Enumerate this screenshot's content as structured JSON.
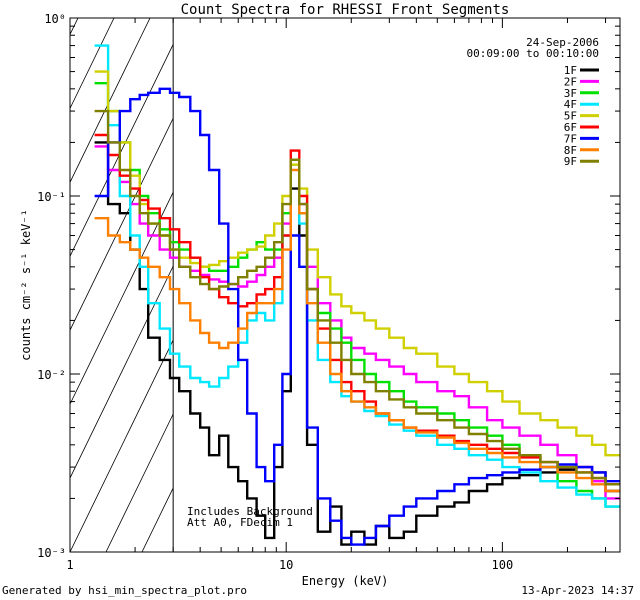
{
  "chart_data": {
    "type": "line",
    "title": "Count Spectra for RHESSI Front Segments",
    "xlabel": "Energy (keV)",
    "ylabel": "counts cm⁻² s⁻¹ keV⁻¹",
    "xscale": "log",
    "yscale": "log",
    "xlim": [
      1,
      350
    ],
    "ylim": [
      0.001,
      1
    ],
    "x_ticks": [
      {
        "v": 1,
        "label": "1"
      },
      {
        "v": 10,
        "label": "10"
      },
      {
        "v": 100,
        "label": "100"
      }
    ],
    "y_ticks": [
      {
        "v": 1,
        "label": "10⁰"
      },
      {
        "v": 0.1,
        "label": "10⁻¹"
      },
      {
        "v": 0.01,
        "label": "10⁻²"
      },
      {
        "v": 0.001,
        "label": "10⁻³"
      }
    ],
    "date": "24-Sep-2006",
    "time_range": "00:09:00 to 00:10:00",
    "annotation_lines": [
      "Includes Background",
      "Att A0, FDecim 1"
    ],
    "hatch_region_keV": [
      1,
      3
    ],
    "series": [
      {
        "name": "1F",
        "color": "#000000",
        "energy": [
          1.3,
          1.5,
          1.7,
          1.9,
          2.1,
          2.3,
          2.6,
          2.9,
          3.2,
          3.6,
          4,
          4.4,
          4.9,
          5.4,
          6,
          6.6,
          7.3,
          8,
          8.8,
          9.6,
          10.5,
          11.5,
          12.5,
          14,
          16,
          18,
          20,
          23,
          26,
          30,
          35,
          40,
          50,
          60,
          70,
          85,
          100,
          120,
          150,
          180,
          220,
          260,
          300
        ],
        "values": [
          0.2,
          0.09,
          0.08,
          0.05,
          0.03,
          0.016,
          0.012,
          0.0095,
          0.008,
          0.006,
          0.005,
          0.0035,
          0.0045,
          0.003,
          0.0025,
          0.002,
          0.0016,
          0.0012,
          0.003,
          0.008,
          0.11,
          0.06,
          0.004,
          0.0013,
          0.0018,
          0.0011,
          0.0013,
          0.0011,
          0.0014,
          0.0012,
          0.0013,
          0.0016,
          0.0018,
          0.0019,
          0.0022,
          0.0024,
          0.0026,
          0.0027,
          0.0028,
          0.0029,
          0.003,
          0.0028,
          0.0022
        ]
      },
      {
        "name": "2F",
        "color": "#ff00ff",
        "energy": [
          1.3,
          1.5,
          1.7,
          1.9,
          2.1,
          2.3,
          2.6,
          2.9,
          3.2,
          3.6,
          4,
          4.4,
          4.9,
          5.4,
          6,
          6.6,
          7.3,
          8,
          8.8,
          9.6,
          10.5,
          11.5,
          12.5,
          14,
          16,
          18,
          20,
          23,
          26,
          30,
          35,
          40,
          50,
          60,
          70,
          85,
          100,
          120,
          150,
          180,
          220,
          260,
          300
        ],
        "values": [
          0.19,
          0.14,
          0.12,
          0.09,
          0.07,
          0.06,
          0.05,
          0.045,
          0.04,
          0.038,
          0.036,
          0.034,
          0.033,
          0.032,
          0.031,
          0.033,
          0.036,
          0.04,
          0.045,
          0.07,
          0.16,
          0.09,
          0.04,
          0.025,
          0.02,
          0.016,
          0.014,
          0.013,
          0.012,
          0.011,
          0.01,
          0.009,
          0.008,
          0.0075,
          0.0065,
          0.0055,
          0.005,
          0.0045,
          0.004,
          0.0035,
          0.003,
          0.0025,
          0.002
        ]
      },
      {
        "name": "3F",
        "color": "#00e000",
        "energy": [
          1.3,
          1.5,
          1.7,
          1.9,
          2.1,
          2.3,
          2.6,
          2.9,
          3.2,
          3.6,
          4,
          4.4,
          4.9,
          5.4,
          6,
          6.6,
          7.3,
          8,
          8.8,
          9.6,
          10.5,
          11.5,
          12.5,
          14,
          16,
          18,
          20,
          23,
          26,
          30,
          35,
          40,
          50,
          60,
          70,
          85,
          100,
          120,
          150,
          180,
          220,
          260,
          300
        ],
        "values": [
          0.43,
          0.3,
          0.2,
          0.14,
          0.1,
          0.08,
          0.065,
          0.055,
          0.05,
          0.045,
          0.04,
          0.038,
          0.038,
          0.04,
          0.045,
          0.05,
          0.055,
          0.05,
          0.05,
          0.08,
          0.16,
          0.08,
          0.03,
          0.022,
          0.018,
          0.015,
          0.012,
          0.01,
          0.009,
          0.008,
          0.007,
          0.0065,
          0.006,
          0.0055,
          0.005,
          0.0045,
          0.004,
          0.0035,
          0.003,
          0.0025,
          0.0022,
          0.002,
          0.0018
        ]
      },
      {
        "name": "4F",
        "color": "#00e8ff",
        "energy": [
          1.3,
          1.5,
          1.7,
          1.9,
          2.1,
          2.3,
          2.6,
          2.9,
          3.2,
          3.6,
          4,
          4.4,
          4.9,
          5.4,
          6,
          6.6,
          7.3,
          8,
          8.8,
          9.6,
          10.5,
          11.5,
          12.5,
          14,
          16,
          18,
          20,
          23,
          26,
          30,
          35,
          40,
          50,
          60,
          70,
          85,
          100,
          120,
          150,
          180,
          220,
          260,
          300
        ],
        "values": [
          0.7,
          0.25,
          0.1,
          0.06,
          0.04,
          0.025,
          0.018,
          0.013,
          0.011,
          0.0095,
          0.009,
          0.0085,
          0.0095,
          0.011,
          0.015,
          0.02,
          0.022,
          0.02,
          0.025,
          0.06,
          0.15,
          0.07,
          0.02,
          0.012,
          0.009,
          0.0075,
          0.007,
          0.0062,
          0.0058,
          0.0052,
          0.0048,
          0.0045,
          0.004,
          0.0038,
          0.0035,
          0.0033,
          0.003,
          0.0028,
          0.0025,
          0.0023,
          0.0021,
          0.002,
          0.0018
        ]
      },
      {
        "name": "5F",
        "color": "#d0d000",
        "energy": [
          1.3,
          1.5,
          1.7,
          1.9,
          2.1,
          2.3,
          2.6,
          2.9,
          3.2,
          3.6,
          4,
          4.4,
          4.9,
          5.4,
          6,
          6.6,
          7.3,
          8,
          8.8,
          9.6,
          10.5,
          11.5,
          12.5,
          14,
          16,
          18,
          20,
          23,
          26,
          30,
          35,
          40,
          50,
          60,
          70,
          85,
          100,
          120,
          150,
          180,
          220,
          260,
          300
        ],
        "values": [
          0.5,
          0.3,
          0.2,
          0.13,
          0.09,
          0.07,
          0.06,
          0.05,
          0.045,
          0.042,
          0.04,
          0.041,
          0.043,
          0.045,
          0.048,
          0.05,
          0.052,
          0.06,
          0.07,
          0.1,
          0.15,
          0.11,
          0.05,
          0.035,
          0.028,
          0.024,
          0.022,
          0.02,
          0.018,
          0.016,
          0.014,
          0.013,
          0.011,
          0.01,
          0.009,
          0.008,
          0.007,
          0.006,
          0.0055,
          0.005,
          0.0045,
          0.004,
          0.0035
        ]
      },
      {
        "name": "6F",
        "color": "#ff0000",
        "energy": [
          1.3,
          1.5,
          1.7,
          1.9,
          2.1,
          2.3,
          2.6,
          2.9,
          3.2,
          3.6,
          4,
          4.4,
          4.9,
          5.4,
          6,
          6.6,
          7.3,
          8,
          8.8,
          9.6,
          10.5,
          11.5,
          12.5,
          14,
          16,
          18,
          20,
          23,
          26,
          30,
          35,
          40,
          50,
          60,
          70,
          85,
          100,
          120,
          150,
          180,
          220,
          260,
          300
        ],
        "values": [
          0.22,
          0.17,
          0.13,
          0.11,
          0.095,
          0.085,
          0.075,
          0.065,
          0.055,
          0.045,
          0.035,
          0.03,
          0.027,
          0.025,
          0.024,
          0.025,
          0.028,
          0.03,
          0.035,
          0.06,
          0.18,
          0.1,
          0.03,
          0.018,
          0.012,
          0.009,
          0.008,
          0.007,
          0.006,
          0.0055,
          0.005,
          0.0048,
          0.0045,
          0.0042,
          0.004,
          0.0038,
          0.0036,
          0.0034,
          0.0032,
          0.003,
          0.0028,
          0.0026,
          0.0024
        ]
      },
      {
        "name": "7F",
        "color": "#0000ff",
        "energy": [
          1.3,
          1.5,
          1.7,
          1.9,
          2.1,
          2.3,
          2.6,
          2.9,
          3.2,
          3.6,
          4,
          4.4,
          4.9,
          5.4,
          6,
          6.6,
          7.3,
          8,
          8.8,
          9.6,
          10.5,
          11.5,
          12.5,
          14,
          16,
          18,
          20,
          23,
          26,
          30,
          35,
          40,
          50,
          60,
          70,
          85,
          100,
          120,
          150,
          180,
          220,
          260,
          300
        ],
        "values": [
          0.1,
          0.2,
          0.3,
          0.35,
          0.37,
          0.38,
          0.4,
          0.38,
          0.36,
          0.3,
          0.22,
          0.14,
          0.07,
          0.03,
          0.012,
          0.006,
          0.003,
          0.0025,
          0.004,
          0.01,
          0.06,
          0.04,
          0.005,
          0.002,
          0.0015,
          0.0012,
          0.0011,
          0.0012,
          0.0014,
          0.0016,
          0.0018,
          0.002,
          0.0022,
          0.0024,
          0.0026,
          0.0027,
          0.0028,
          0.0029,
          0.003,
          0.0031,
          0.003,
          0.0028,
          0.0025
        ]
      },
      {
        "name": "8F",
        "color": "#ff8000",
        "energy": [
          1.3,
          1.5,
          1.7,
          1.9,
          2.1,
          2.3,
          2.6,
          2.9,
          3.2,
          3.6,
          4,
          4.4,
          4.9,
          5.4,
          6,
          6.6,
          7.3,
          8,
          8.8,
          9.6,
          10.5,
          11.5,
          12.5,
          14,
          16,
          18,
          20,
          23,
          26,
          30,
          35,
          40,
          50,
          60,
          70,
          85,
          100,
          120,
          150,
          180,
          220,
          260,
          300
        ],
        "values": [
          0.075,
          0.06,
          0.055,
          0.05,
          0.045,
          0.04,
          0.035,
          0.03,
          0.025,
          0.02,
          0.017,
          0.015,
          0.014,
          0.015,
          0.018,
          0.022,
          0.025,
          0.025,
          0.03,
          0.05,
          0.14,
          0.08,
          0.025,
          0.015,
          0.01,
          0.008,
          0.007,
          0.0065,
          0.006,
          0.0055,
          0.005,
          0.0047,
          0.0044,
          0.0041,
          0.0038,
          0.0036,
          0.0034,
          0.0032,
          0.003,
          0.0028,
          0.0026,
          0.0024,
          0.0022
        ]
      },
      {
        "name": "9F",
        "color": "#808000",
        "energy": [
          1.3,
          1.5,
          1.7,
          1.9,
          2.1,
          2.3,
          2.6,
          2.9,
          3.2,
          3.6,
          4,
          4.4,
          4.9,
          5.4,
          6,
          6.6,
          7.3,
          8,
          8.8,
          9.6,
          10.5,
          11.5,
          12.5,
          14,
          16,
          18,
          20,
          23,
          26,
          30,
          35,
          40,
          50,
          60,
          70,
          85,
          100,
          120,
          150,
          180,
          220,
          260,
          300
        ],
        "values": [
          0.3,
          0.2,
          0.14,
          0.1,
          0.08,
          0.07,
          0.06,
          0.05,
          0.04,
          0.035,
          0.032,
          0.03,
          0.031,
          0.032,
          0.035,
          0.038,
          0.04,
          0.045,
          0.055,
          0.09,
          0.16,
          0.09,
          0.03,
          0.02,
          0.015,
          0.012,
          0.01,
          0.009,
          0.008,
          0.0072,
          0.0065,
          0.006,
          0.0055,
          0.005,
          0.0046,
          0.0042,
          0.0038,
          0.0035,
          0.0032,
          0.003,
          0.0028,
          0.0026,
          0.0024
        ]
      }
    ]
  },
  "footer": {
    "generated_by": "Generated by hsi_min_spectra_plot.pro",
    "timestamp": "13-Apr-2023 14:37"
  }
}
